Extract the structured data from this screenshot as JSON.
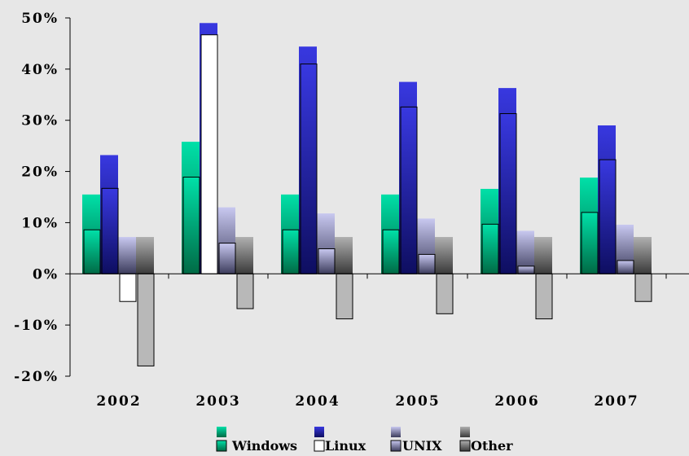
{
  "chart_data": {
    "type": "bar",
    "title": "",
    "xlabel": "",
    "ylabel": "",
    "categories": [
      "2002",
      "2003",
      "2004",
      "2005",
      "2006",
      "2007"
    ],
    "ylim": [
      -20,
      50
    ],
    "yticks": [
      50,
      40,
      30,
      20,
      10,
      0,
      -10,
      -20
    ],
    "ytick_labels": [
      "50%",
      "40%",
      "30%",
      "20%",
      "10%",
      "0%",
      "-10%",
      "-20%"
    ],
    "series": [
      {
        "name": "Windows",
        "color": "#00c896",
        "values": [
          15.5,
          25.8,
          15.5,
          15.5,
          16.6,
          18.8
        ],
        "overlay_values": [
          8.6,
          18.9,
          8.6,
          8.6,
          9.7,
          12.0
        ]
      },
      {
        "name": "Linux",
        "color": "#2b2bd0",
        "values": [
          23.2,
          49.0,
          44.4,
          37.5,
          36.3,
          29.0
        ],
        "overlay_values": [
          16.7,
          46.7,
          41.0,
          32.6,
          31.3,
          22.3
        ]
      },
      {
        "name": "UNIX",
        "color": "#7a7aa8",
        "values": [
          7.2,
          13.0,
          11.8,
          10.8,
          8.4,
          9.6
        ],
        "overlay_values": [
          -5.4,
          6.0,
          4.9,
          3.8,
          1.5,
          2.6
        ]
      },
      {
        "name": "Other",
        "color": "#9a9a9a",
        "values": [
          7.2,
          7.2,
          7.2,
          7.2,
          7.2,
          7.2
        ],
        "overlay_values": [
          -18.0,
          -6.8,
          -8.8,
          -7.8,
          -8.8,
          -5.4
        ]
      }
    ],
    "legend_position": "bottom",
    "grid": false
  }
}
